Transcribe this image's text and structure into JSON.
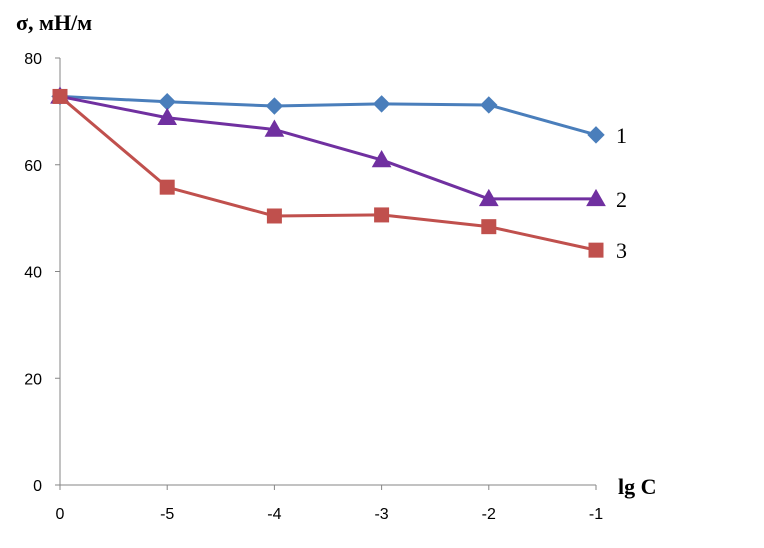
{
  "chart_data": {
    "type": "line",
    "ylabel": "σ, мН/м",
    "xlabel": "lg C",
    "categories": [
      "0",
      "-5",
      "-4",
      "-3",
      "-2",
      "-1"
    ],
    "ylim": [
      0,
      80
    ],
    "yticks": [
      "0",
      "20",
      "40",
      "60",
      "80"
    ],
    "grid": false,
    "series": [
      {
        "name": "1",
        "marker": "diamond",
        "color": "#4a7ebb",
        "values": [
          72.8,
          71.8,
          71.0,
          71.4,
          71.2,
          65.6
        ]
      },
      {
        "name": "2",
        "marker": "triangle",
        "color": "#7030a0",
        "values": [
          72.8,
          68.8,
          66.6,
          60.9,
          53.6,
          53.6
        ]
      },
      {
        "name": "3",
        "marker": "square",
        "color": "#c0504d",
        "values": [
          72.8,
          55.8,
          50.4,
          50.6,
          48.4,
          44.0
        ]
      }
    ]
  }
}
